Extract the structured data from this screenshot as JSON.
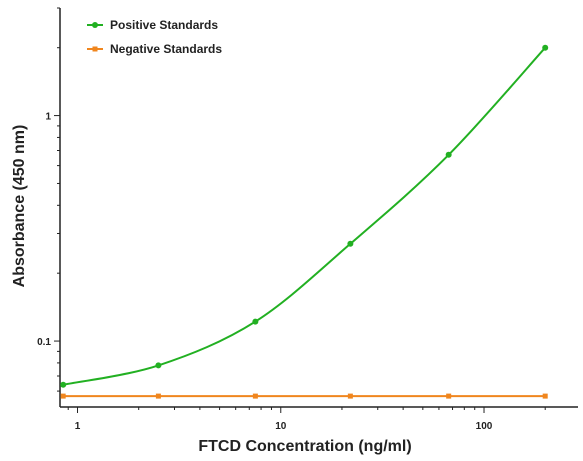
{
  "chart_data": {
    "type": "line",
    "xlabel": "FTCD Concentration (ng/ml)",
    "ylabel": "Absorbance (450 nm)",
    "xscale": "log",
    "yscale": "log",
    "xlim": [
      0.82,
      290
    ],
    "ylim": [
      0.051,
      3.0
    ],
    "x_ticks": [
      1,
      10,
      100
    ],
    "x_tick_labels": [
      "1",
      "10",
      "100"
    ],
    "y_ticks": [
      0.1,
      1
    ],
    "y_tick_labels": [
      "0.1",
      "1"
    ],
    "legend_position": "top-left",
    "series": [
      {
        "name": "Positive Standards",
        "color": "#22b022",
        "marker": "circle",
        "curve": "fitted",
        "x": [
          0.85,
          2.5,
          7.5,
          22,
          67,
          200
        ],
        "y": [
          0.064,
          0.078,
          0.122,
          0.27,
          0.67,
          2.0
        ]
      },
      {
        "name": "Negative Standards",
        "color": "#f0861e",
        "marker": "square",
        "curve": "straight",
        "x": [
          0.85,
          2.5,
          7.5,
          22,
          67,
          200
        ],
        "y": [
          0.057,
          0.057,
          0.057,
          0.057,
          0.057,
          0.057
        ]
      }
    ]
  }
}
